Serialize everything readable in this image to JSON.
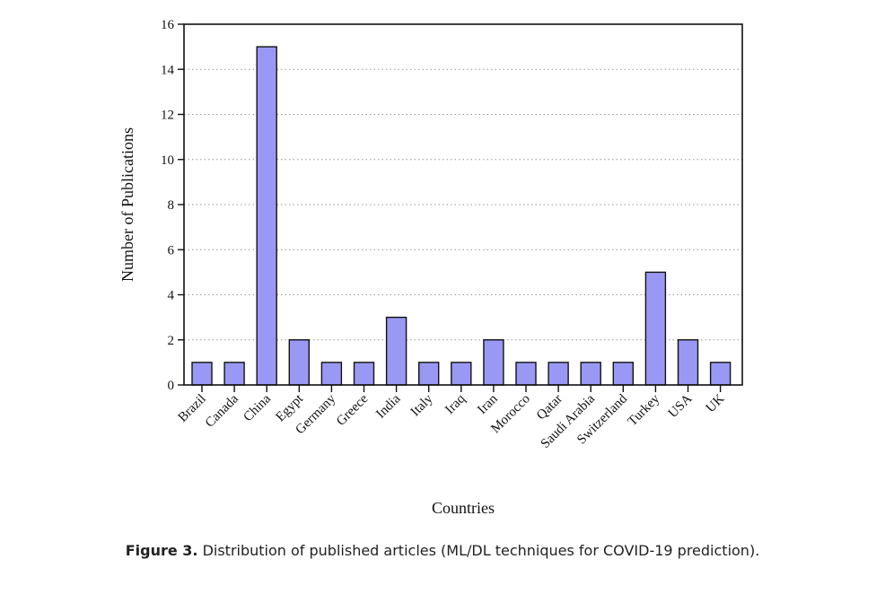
{
  "chart_data": {
    "type": "bar",
    "categories": [
      "Brazil",
      "Canada",
      "China",
      "Egypt",
      "Germany",
      "Greece",
      "India",
      "Italy",
      "Iraq",
      "Iran",
      "Morocco",
      "Qatar",
      "Saudi Arabia",
      "Switzerland",
      "Turkey",
      "USA",
      "UK"
    ],
    "values": [
      1,
      1,
      15,
      2,
      1,
      1,
      3,
      1,
      1,
      2,
      1,
      1,
      1,
      1,
      5,
      2,
      1
    ],
    "xlabel": "Countries",
    "ylabel": "Number of Publications",
    "ylim": [
      0,
      16
    ],
    "yticks": [
      0,
      2,
      4,
      6,
      8,
      10,
      12,
      14,
      16
    ],
    "grid": "horizontal dotted",
    "bar_color": "#9999f5",
    "edge_color": "#111111"
  },
  "caption": {
    "label": "Figure 3.",
    "text": " Distribution of published articles (ML/DL techniques for COVID-19 prediction)."
  }
}
